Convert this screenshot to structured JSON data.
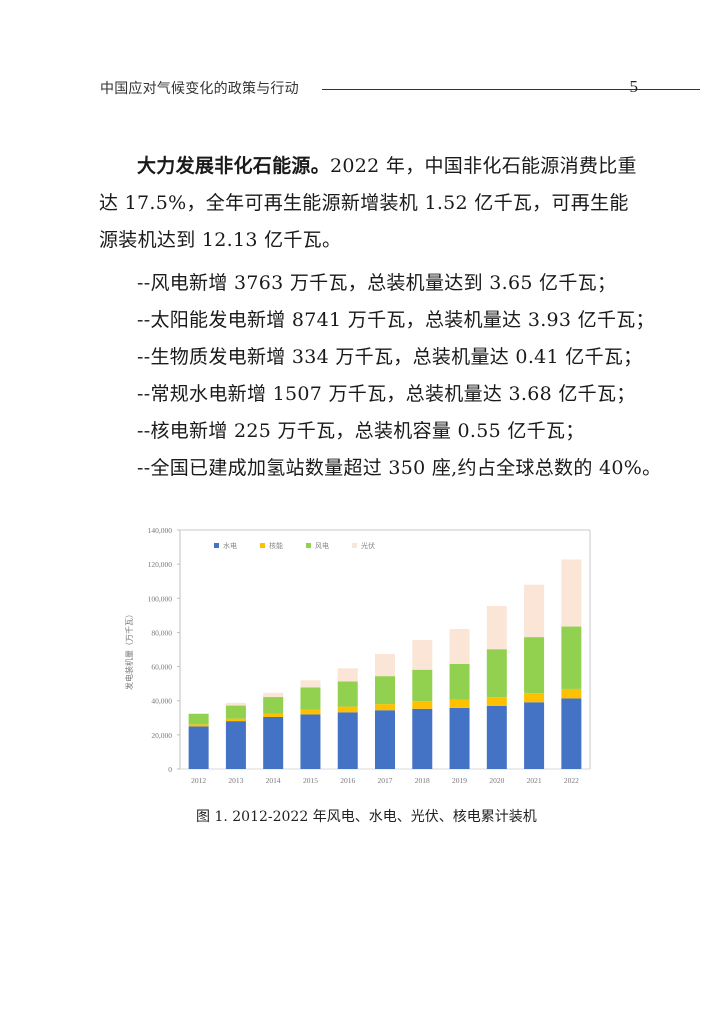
{
  "header": {
    "title": "中国应对气候变化的政策与行动",
    "page_number": "5"
  },
  "body": {
    "paragraph": {
      "bold_lead": "大力发展非化石能源。",
      "text": "2022 年，中国非化石能源消费比重达 17.5%，全年可再生能源新增装机 1.52 亿千瓦，可再生能源装机达到 12.13 亿千瓦。"
    },
    "bullets": [
      "--风电新增 3763 万千瓦，总装机量达到 3.65 亿千瓦；",
      "--太阳能发电新增 8741 万千瓦，总装机量达 3.93 亿千瓦；",
      "--生物质发电新增 334 万千瓦，总装机量达 0.41 亿千瓦；",
      "--常规水电新增 1507 万千瓦，总装机量达 3.68 亿千瓦；",
      "--核电新增 225 万千瓦，总装机容量 0.55 亿千瓦；",
      "--全国已建成加氢站数量超过 350 座,约占全球总数的 40%。"
    ]
  },
  "figure": {
    "caption": "图  1. 2012-2022 年风电、水电、光伏、核电累计装机"
  },
  "chart_data": {
    "type": "bar",
    "stacked": true,
    "title": "",
    "xlabel": "",
    "ylabel": "发电装机量（万千瓦）",
    "ylim": [
      0,
      140000
    ],
    "yticks": [
      0,
      20000,
      40000,
      60000,
      80000,
      100000,
      120000,
      140000
    ],
    "ytick_labels": [
      "0",
      "20,000",
      "40,000",
      "60,000",
      "80,000",
      "100,000",
      "120,000",
      "140,000"
    ],
    "grid": false,
    "legend_position": "top-inside",
    "categories": [
      "2012",
      "2013",
      "2014",
      "2015",
      "2016",
      "2017",
      "2018",
      "2019",
      "2020",
      "2021",
      "2022"
    ],
    "series": [
      {
        "name": "水电",
        "color": "#4472C4",
        "values": [
          24947,
          28044,
          30486,
          31954,
          33207,
          34411,
          35259,
          35804,
          37016,
          39094,
          41350
        ]
      },
      {
        "name": "核能",
        "color": "#FFC000",
        "values": [
          1257,
          1466,
          2008,
          2717,
          3364,
          3582,
          4466,
          4874,
          4989,
          5326,
          5553
        ]
      },
      {
        "name": "风电",
        "color": "#92D050",
        "values": [
          6142,
          7652,
          9657,
          13075,
          14747,
          16400,
          18427,
          20915,
          28165,
          32848,
          36544
        ]
      },
      {
        "name": "光伏",
        "color": "#FBE5D6",
        "values": [
          341,
          1589,
          2486,
          4218,
          7631,
          13025,
          17433,
          20418,
          25343,
          30656,
          39261
        ]
      }
    ]
  }
}
